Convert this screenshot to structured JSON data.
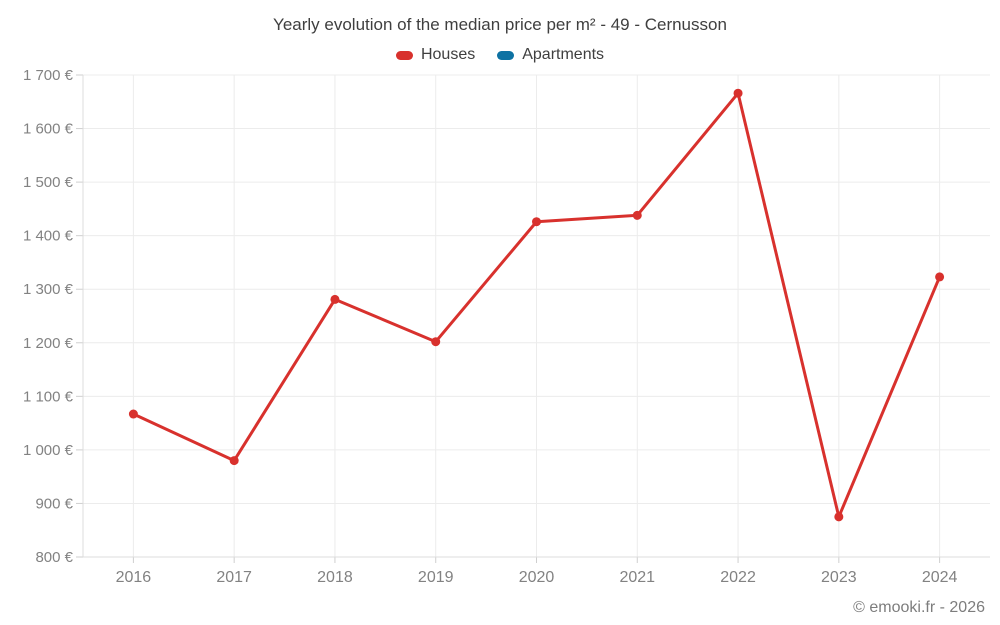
{
  "title": "Yearly evolution of the median price per m² - 49 - Cernusson",
  "legend": {
    "items": [
      {
        "label": "Houses",
        "color": "#d8312d"
      },
      {
        "label": "Apartments",
        "color": "#0e72a3"
      }
    ]
  },
  "watermark": "© emooki.fr - 2026",
  "colors": {
    "gridline": "#ececec",
    "axis": "#dcdcdc",
    "tick": "#cfcfcf",
    "houses": "#d8312d",
    "apartments": "#0e72a3"
  },
  "chart_data": {
    "type": "line",
    "title": "Yearly evolution of the median price per m² - 49 - Cernusson",
    "x": [
      2016,
      2017,
      2018,
      2019,
      2020,
      2021,
      2022,
      2023,
      2024
    ],
    "x_tick_labels": [
      "2016",
      "2017",
      "2018",
      "2019",
      "2020",
      "2021",
      "2022",
      "2023",
      "2024"
    ],
    "series": [
      {
        "name": "Houses",
        "color": "#d8312d",
        "values": [
          1067,
          980,
          1281,
          1202,
          1426,
          1438,
          1666,
          875,
          1323
        ]
      },
      {
        "name": "Apartments",
        "color": "#0e72a3",
        "values": []
      }
    ],
    "xlabel": "",
    "ylabel": "",
    "ylim": [
      800,
      1700
    ],
    "y_ticks": [
      800,
      900,
      1000,
      1100,
      1200,
      1300,
      1400,
      1500,
      1600,
      1700
    ],
    "y_tick_labels": [
      "800 €",
      "900 €",
      "1 000 €",
      "1 100 €",
      "1 200 €",
      "1 300 €",
      "1 400 €",
      "1 500 €",
      "1 600 €",
      "1 700 €"
    ],
    "grid": true,
    "legend_position": "top",
    "currency_suffix": " €"
  }
}
